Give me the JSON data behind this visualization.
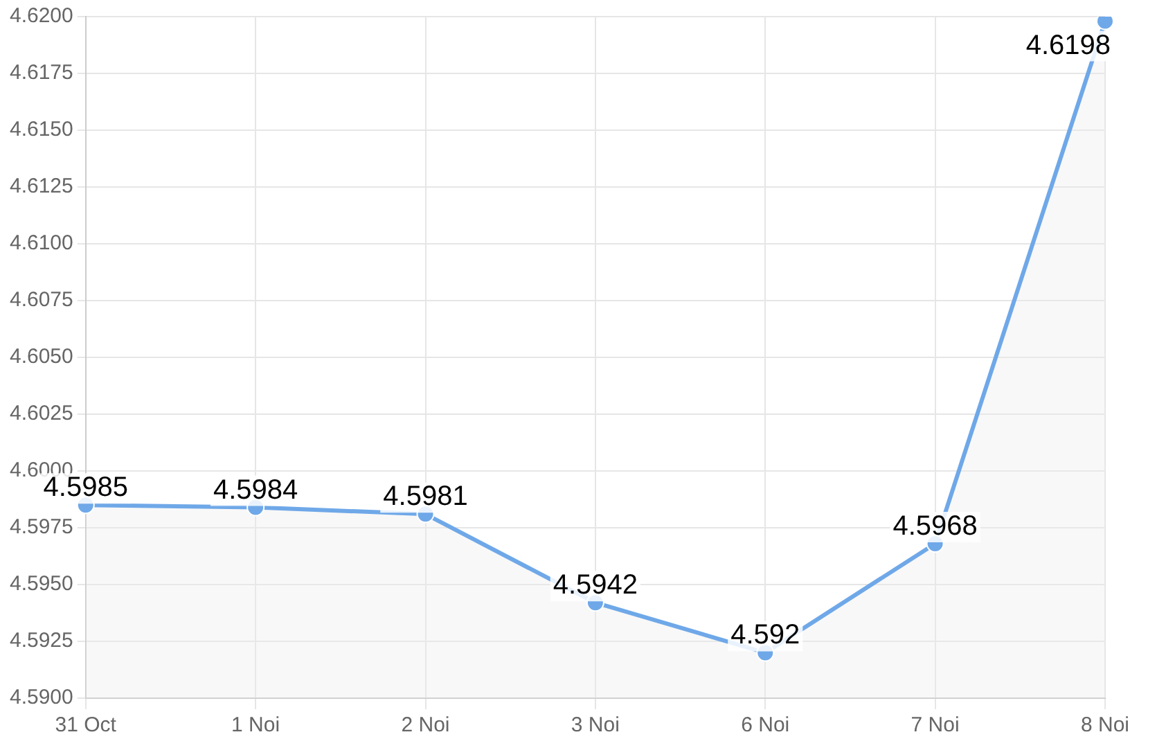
{
  "chart_data": {
    "type": "area",
    "categories": [
      "31 Oct",
      "1 Noi",
      "2 Noi",
      "3 Noi",
      "6 Noi",
      "7 Noi",
      "8 Noi"
    ],
    "series": [
      {
        "color": "#6fa8e8",
        "values": [
          4.5985,
          4.5984,
          4.5981,
          4.5942,
          4.592,
          4.5968,
          4.6198
        ]
      }
    ],
    "ylim": [
      4.59,
      4.62
    ],
    "yticks": [
      {
        "value": 4.59,
        "label": "4.5900"
      },
      {
        "value": 4.5925,
        "label": "4.5925"
      },
      {
        "value": 4.595,
        "label": "4.5950"
      },
      {
        "value": 4.5975,
        "label": "4.5975"
      },
      {
        "value": 4.6,
        "label": "4.6000"
      },
      {
        "value": 4.6025,
        "label": "4.6025"
      },
      {
        "value": 4.605,
        "label": "4.6050"
      },
      {
        "value": 4.6075,
        "label": "4.6075"
      },
      {
        "value": 4.61,
        "label": "4.6100"
      },
      {
        "value": 4.6125,
        "label": "4.6125"
      },
      {
        "value": 4.615,
        "label": "4.6150"
      },
      {
        "value": 4.6175,
        "label": "4.6175"
      },
      {
        "value": 4.62,
        "label": "4.6200"
      }
    ],
    "grid": true,
    "marker": "circle",
    "data_labels": true
  }
}
